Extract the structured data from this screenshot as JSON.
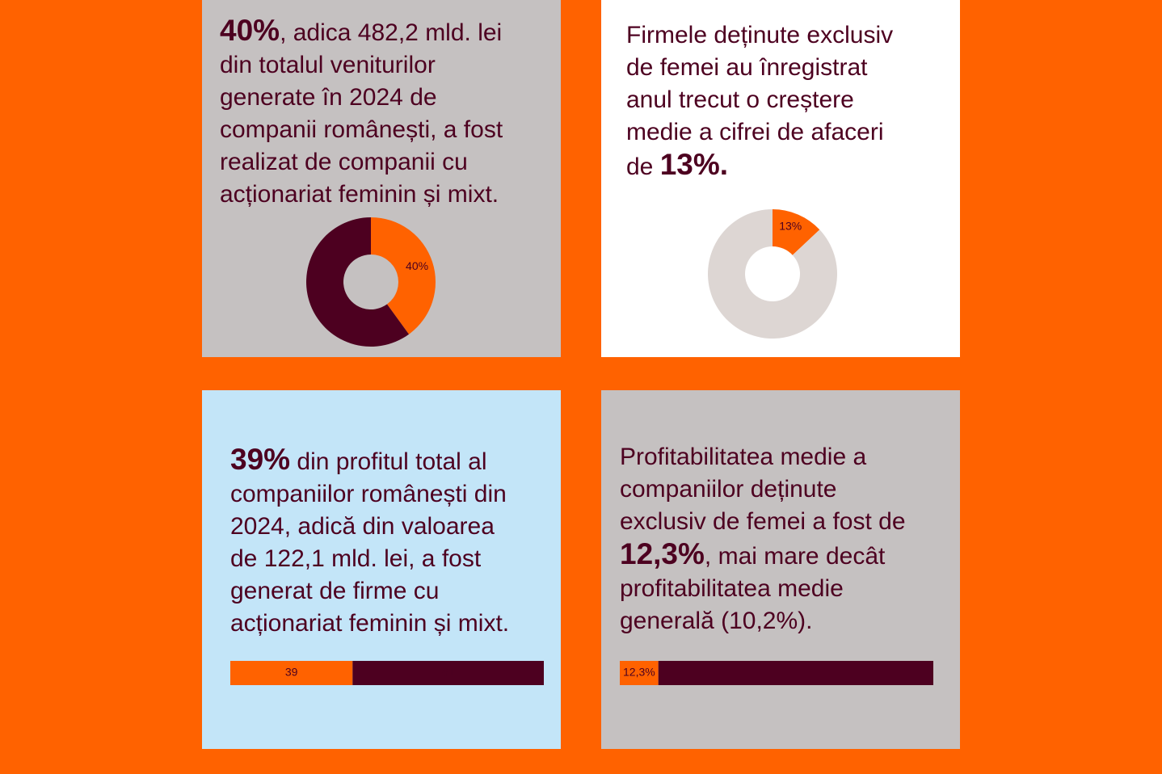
{
  "chart_data": [
    {
      "type": "donut",
      "lines": [
        [
          {
            "text": "40%",
            "bold": true
          },
          {
            "text": ", adica 482,2 mld. lei"
          }
        ],
        [
          {
            "text": "din totalul veniturilor"
          }
        ],
        [
          {
            "text": "generate în 2024 de"
          }
        ],
        [
          {
            "text": "companii românești, a fost"
          }
        ],
        [
          {
            "text": "realizat de companii cu"
          }
        ],
        [
          {
            "text": "acționariat feminin și mixt."
          }
        ]
      ],
      "values": [
        40,
        60
      ],
      "value_labels": [
        "40%",
        null
      ],
      "colors": [
        "#ff6200",
        "#4d0020"
      ]
    },
    {
      "type": "donut",
      "lines": [
        [
          {
            "text": "Firmele deținute exclusiv"
          }
        ],
        [
          {
            "text": "de femei au înregistrat"
          }
        ],
        [
          {
            "text": "anul trecut o creștere"
          }
        ],
        [
          {
            "text": "medie a cifrei de afaceri"
          }
        ],
        [
          {
            "text": "de "
          },
          {
            "text": "13%.",
            "bold": true
          }
        ]
      ],
      "values": [
        13,
        87
      ],
      "value_labels": [
        "13%",
        null
      ],
      "colors": [
        "#ff6200",
        "#ddd6d3"
      ]
    },
    {
      "type": "bar",
      "lines": [
        [
          {
            "text": "39%",
            "bold": true
          },
          {
            "text": " din profitul total al"
          }
        ],
        [
          {
            "text": "companiilor românești din"
          }
        ],
        [
          {
            "text": "2024, adică din valoarea"
          }
        ],
        [
          {
            "text": "de 122,1 mld. lei, a fost"
          }
        ],
        [
          {
            "text": "generat de firme cu"
          }
        ],
        [
          {
            "text": "acționariat feminin și mixt."
          }
        ]
      ],
      "values": [
        39,
        61
      ],
      "xlim": [
        0,
        100
      ],
      "colors": [
        "#ff6200",
        "#4d0020"
      ]
    },
    {
      "type": "bar",
      "lines": [
        [
          {
            "text": "Profitabilitatea medie a"
          }
        ],
        [
          {
            "text": "companiilor deținute"
          }
        ],
        [
          {
            "text": "exclusiv de femei a fost de"
          }
        ],
        [
          {
            "text": "12,3%",
            "bold": true
          },
          {
            "text": ", mai mare decât"
          }
        ],
        [
          {
            "text": "profitabilitatea medie"
          }
        ],
        [
          {
            "text": "generală (10,2%)."
          }
        ]
      ],
      "values": [
        12.3,
        87.7
      ],
      "value_labels": [
        "12,3%",
        null
      ],
      "xlim": [
        0,
        100
      ],
      "colors": [
        "#ff6200",
        "#4d0020"
      ]
    }
  ]
}
